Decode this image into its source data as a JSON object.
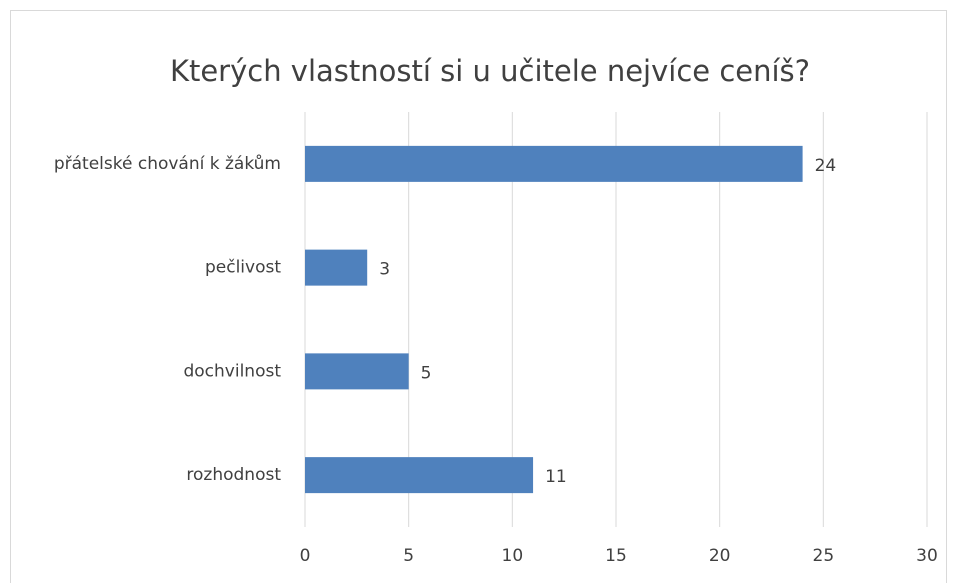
{
  "chart_data": {
    "type": "bar",
    "orientation": "horizontal",
    "title": "Kterých vlastností si u učitele nejvíce ceníš?",
    "categories": [
      "přátelské chování k žákům",
      "pečlivost",
      "dochvilnost",
      "rozhodnost"
    ],
    "values": [
      24,
      3,
      5,
      11
    ],
    "color": "#4f81bd",
    "xlim": [
      0,
      30
    ],
    "xticks": [
      0,
      5,
      10,
      15,
      20,
      25,
      30
    ],
    "grid": true,
    "data_labels": true
  }
}
